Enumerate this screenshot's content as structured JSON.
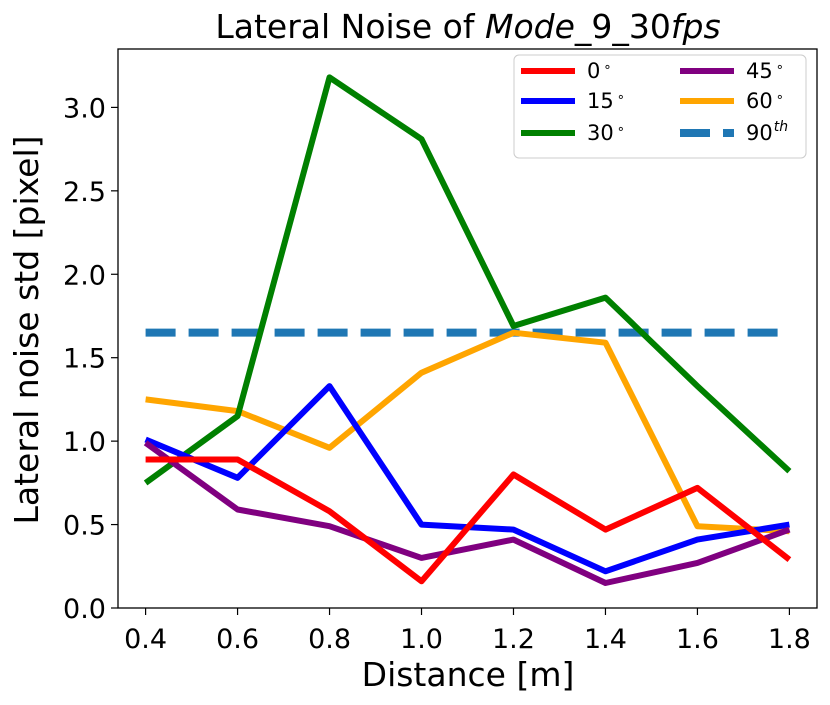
{
  "chart_data": {
    "type": "line",
    "title_prefix": "Lateral Noise of ",
    "title_mode": "Mode",
    "title_mid": "_9_30",
    "title_fps": "fps",
    "xlabel": "Distance [m]",
    "ylabel": "Lateral noise std [pixel]",
    "x": [
      0.4,
      0.6,
      0.8,
      1.0,
      1.2,
      1.4,
      1.6,
      1.8
    ],
    "xlim": [
      0.34,
      1.86
    ],
    "ylim": [
      0.0,
      3.35
    ],
    "x_ticks": [
      "0.4",
      "0.6",
      "0.8",
      "1.0",
      "1.2",
      "1.4",
      "1.6",
      "1.8"
    ],
    "y_ticks": [
      "0.0",
      "0.5",
      "1.0",
      "1.5",
      "2.0",
      "2.5",
      "3.0"
    ],
    "series": [
      {
        "name": "0",
        "color": "#ff0000",
        "values": [
          0.89,
          0.89,
          0.58,
          0.16,
          0.8,
          0.47,
          0.72,
          0.29
        ]
      },
      {
        "name": "15",
        "color": "#0000ff",
        "values": [
          1.01,
          0.78,
          1.33,
          0.5,
          0.47,
          0.22,
          0.41,
          0.5
        ]
      },
      {
        "name": "30",
        "color": "#008000",
        "values": [
          0.75,
          1.15,
          3.18,
          2.81,
          1.69,
          1.86,
          1.33,
          0.82
        ]
      },
      {
        "name": "45",
        "color": "#800080",
        "values": [
          0.99,
          0.59,
          0.49,
          0.3,
          0.41,
          0.15,
          0.27,
          0.47
        ]
      },
      {
        "name": "60",
        "color": "#ffa500",
        "values": [
          1.25,
          1.18,
          0.96,
          1.41,
          1.65,
          1.59,
          0.49,
          0.46
        ]
      }
    ],
    "threshold": {
      "name": "90",
      "superscript": "th",
      "color": "#1f77b4",
      "value": 1.65
    },
    "degree_symbol": "∘",
    "legend_position": "top-right"
  }
}
